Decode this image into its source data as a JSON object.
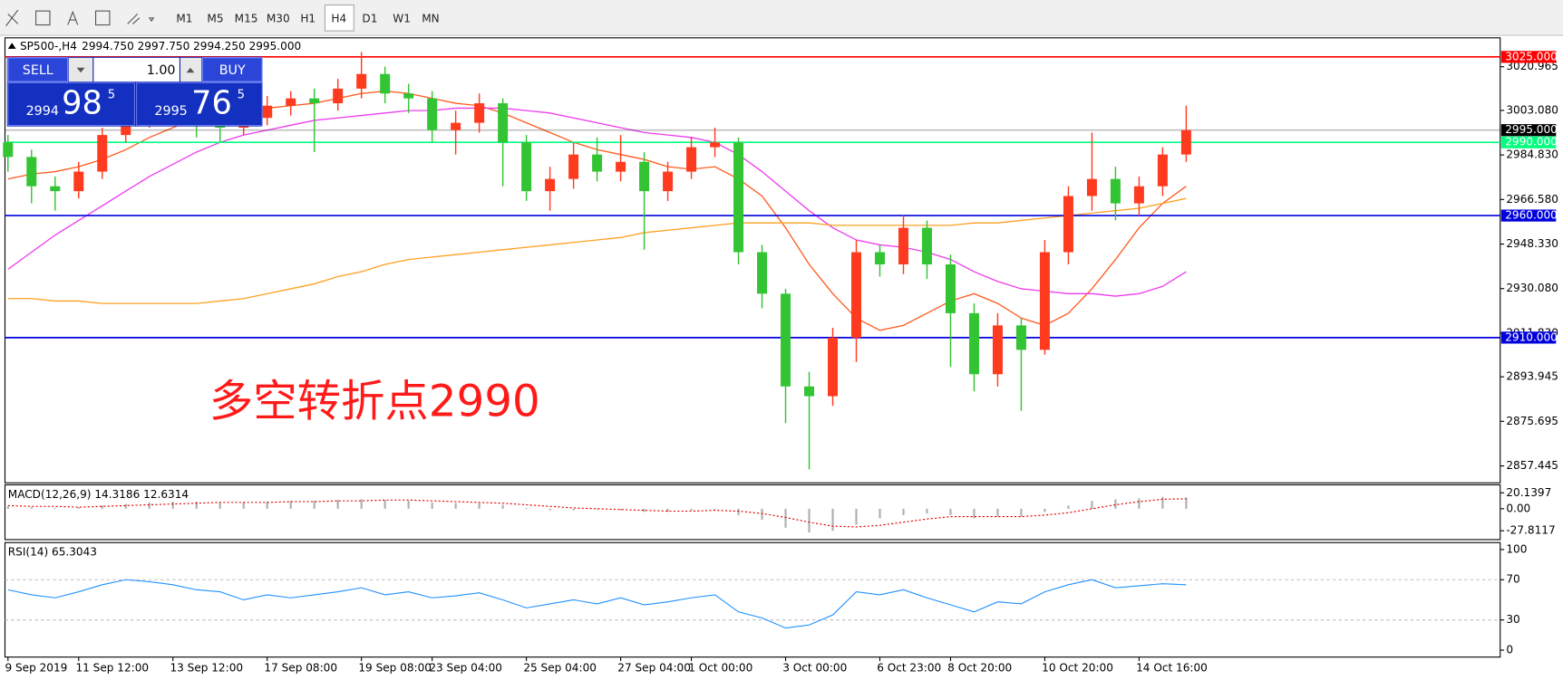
{
  "toolbar": {
    "timeframes": [
      "M1",
      "M5",
      "M15",
      "M30",
      "H1",
      "H4",
      "D1",
      "W1",
      "MN"
    ],
    "active": 5
  },
  "trade_panel": {
    "sell": "SELL",
    "buy": "BUY",
    "lot": "1.00",
    "sell_price": [
      "2994",
      "98",
      "5"
    ],
    "buy_price": [
      "2995",
      "76",
      "5"
    ]
  },
  "chart_data": {
    "type": "candlestick",
    "title": "SP500-,H4",
    "ohlc_label": "2994.750 2997.750 2994.250 2995.000",
    "categories": [
      "9 Sep 2019",
      null,
      null,
      "11 Sep 12:00",
      null,
      null,
      null,
      "13 Sep 12:00",
      null,
      null,
      null,
      "17 Sep 08:00",
      null,
      null,
      null,
      "19 Sep 08:00",
      null,
      null,
      "23 Sep 04:00",
      null,
      null,
      null,
      "25 Sep 04:00",
      null,
      null,
      null,
      "27 Sep 04:00",
      null,
      null,
      "1 Oct 00:00",
      null,
      null,
      null,
      "3 Oct 00:00",
      null,
      null,
      null,
      "6 Oct 23:00",
      null,
      null,
      "8 Oct 20:00",
      null,
      null,
      null,
      "10 Oct 20:00",
      null,
      null,
      null,
      "14 Oct 16:00",
      null,
      null
    ],
    "open": [
      2990,
      2984,
      2972,
      2970,
      2978,
      2993,
      3000,
      3003,
      3005,
      2998,
      2996,
      3000,
      3005,
      3008,
      3006,
      3012,
      3018,
      3010,
      3008,
      2995,
      2998,
      3006,
      2990,
      2970,
      2975,
      2985,
      2978,
      2982,
      2970,
      2978,
      2988,
      2990,
      2945,
      2928,
      2890,
      2886,
      2910,
      2945,
      2940,
      2955,
      2940,
      2920,
      2895,
      2915,
      2905,
      2945,
      2968,
      2975,
      2965,
      2972,
      2985
    ],
    "high": [
      2993,
      2987,
      2976,
      2982,
      2996,
      3004,
      3007,
      3009,
      3008,
      3001,
      3005,
      3009,
      3011,
      3012,
      3016,
      3027,
      3021,
      3014,
      3011,
      3003,
      3010,
      3008,
      2993,
      2980,
      2990,
      2992,
      2993,
      2986,
      2982,
      2992,
      2996,
      2992,
      2948,
      2930,
      2896,
      2914,
      2950,
      2948,
      2960,
      2958,
      2944,
      2924,
      2920,
      2918,
      2950,
      2972,
      2994,
      2980,
      2976,
      2988,
      3005
    ],
    "low": [
      2978,
      2965,
      2962,
      2967,
      2975,
      2990,
      2996,
      2999,
      2992,
      2990,
      2993,
      2997,
      3001,
      2986,
      3003,
      3008,
      3006,
      3002,
      2990,
      2985,
      2994,
      2972,
      2966,
      2962,
      2971,
      2974,
      2974,
      2946,
      2966,
      2975,
      2984,
      2940,
      2922,
      2875,
      2856,
      2882,
      2900,
      2935,
      2936,
      2934,
      2898,
      2888,
      2890,
      2880,
      2903,
      2940,
      2962,
      2958,
      2960,
      2968,
      2982
    ],
    "close": [
      2984,
      2972,
      2970,
      2978,
      2993,
      3000,
      3003,
      3005,
      2998,
      2996,
      3000,
      3005,
      3008,
      3006,
      3012,
      3018,
      3010,
      3008,
      2995,
      2998,
      3006,
      2990,
      2970,
      2975,
      2985,
      2978,
      2982,
      2970,
      2978,
      2988,
      2990,
      2945,
      2928,
      2890,
      2886,
      2910,
      2945,
      2940,
      2955,
      2940,
      2920,
      2895,
      2915,
      2905,
      2945,
      2968,
      2975,
      2965,
      2972,
      2985,
      2995
    ],
    "up_color": "#ff3b1f",
    "down_color": "#33c433",
    "ma_lines": [
      {
        "color": "#ff5a1f",
        "values": [
          2975,
          2977,
          2978,
          2980,
          2983,
          2987,
          2992,
          2996,
          3000,
          3001,
          3002,
          3004,
          3005,
          3006,
          3008,
          3010,
          3011,
          3010,
          3008,
          3006,
          3005,
          3002,
          2998,
          2994,
          2990,
          2987,
          2985,
          2983,
          2980,
          2979,
          2980,
          2975,
          2968,
          2955,
          2940,
          2928,
          2918,
          2913,
          2915,
          2920,
          2925,
          2928,
          2924,
          2918,
          2915,
          2920,
          2930,
          2942,
          2955,
          2965,
          2972
        ]
      },
      {
        "color": "#ee3bee",
        "values": [
          2938,
          2945,
          2952,
          2958,
          2964,
          2970,
          2976,
          2981,
          2986,
          2990,
          2993,
          2995,
          2997,
          2999,
          3000,
          3001,
          3002,
          3003,
          3003,
          3004,
          3004,
          3004,
          3003,
          3002,
          3000,
          2998,
          2996,
          2994,
          2993,
          2992,
          2990,
          2985,
          2978,
          2970,
          2962,
          2955,
          2950,
          2948,
          2947,
          2945,
          2942,
          2937,
          2933,
          2930,
          2929,
          2928,
          2928,
          2927,
          2928,
          2931,
          2937
        ]
      },
      {
        "color": "#ffa020",
        "values": [
          2926,
          2926,
          2925,
          2925,
          2924,
          2924,
          2924,
          2924,
          2924,
          2925,
          2926,
          2928,
          2930,
          2932,
          2935,
          2937,
          2940,
          2942,
          2943,
          2944,
          2945,
          2946,
          2947,
          2948,
          2949,
          2950,
          2951,
          2953,
          2954,
          2955,
          2956,
          2957,
          2957,
          2957,
          2957,
          2956,
          2956,
          2956,
          2956,
          2956,
          2956,
          2957,
          2957,
          2958,
          2959,
          2960,
          2961,
          2962,
          2963,
          2965,
          2967
        ]
      }
    ],
    "levels": [
      {
        "value": 3025,
        "label": "3025.000",
        "color": "#ff0000"
      },
      {
        "value": 2995,
        "label": "2995.000",
        "color": "#000000"
      },
      {
        "value": 2990,
        "label": "2990.000",
        "color": "#00ff7f"
      },
      {
        "value": 2960,
        "label": "2960.000",
        "color": "#0000dd"
      },
      {
        "value": 2910,
        "label": "2910.000",
        "color": "#0000dd"
      }
    ],
    "annotation": "多空转折点2990",
    "ylim": [
      2850.5,
      3032.8
    ],
    "yticks": [
      3020.965,
      {
        "value": 3003.08,
        "label": "3003.080"
      },
      {
        "value": 2984.83,
        "label": "2984.830"
      },
      {
        "value": 2966.58,
        "label": "2966.580"
      },
      {
        "value": 2948.33,
        "label": "2948.330"
      },
      {
        "value": 2930.08,
        "label": "2930.080"
      },
      {
        "value": 2911.83,
        "label": "2911.830"
      },
      2893.945,
      2875.695,
      2857.445
    ],
    "indicators": [
      {
        "type": "macd",
        "label": "MACD(12,26,9) 14.3186 12.6314",
        "color": "#b0b0b0",
        "signal_color": "#e00000",
        "ylim": [
          -39,
          30.2
        ],
        "yticks": [
          20.1397,
          {
            "value": 0,
            "label": "0.00"
          },
          -27.8117
        ],
        "values": [
          3,
          2,
          1,
          2,
          4,
          6,
          8,
          9,
          9,
          8,
          8,
          9,
          10,
          10,
          11,
          12,
          11,
          10,
          8,
          7,
          7,
          5,
          1,
          -2,
          -2,
          -1,
          -2,
          -4,
          -4,
          -2,
          -1,
          -8,
          -14,
          -24,
          -30,
          -28,
          -20,
          -12,
          -8,
          -6,
          -8,
          -12,
          -10,
          -10,
          -4,
          4,
          10,
          12,
          13,
          15,
          14.3
        ],
        "signal": [
          4,
          3,
          3,
          2,
          3,
          4,
          5,
          6,
          7,
          8,
          8,
          8,
          9,
          9,
          10,
          10,
          11,
          11,
          10,
          9,
          8,
          7,
          5,
          3,
          1,
          0,
          -1,
          -2,
          -3,
          -3,
          -2,
          -3,
          -6,
          -11,
          -17,
          -22,
          -23,
          -21,
          -17,
          -13,
          -10,
          -10,
          -10,
          -10,
          -8,
          -5,
          0,
          5,
          9,
          12,
          12.6
        ]
      },
      {
        "type": "line",
        "label": "RSI(14) 65.3043",
        "color": "#1e90ff",
        "ylim": [
          -6.9,
          106.9
        ],
        "yticks": [
          100,
          70,
          30,
          0
        ],
        "levels": [
          70,
          30
        ],
        "values": [
          60,
          55,
          52,
          58,
          65,
          70,
          68,
          65,
          60,
          58,
          50,
          55,
          52,
          55,
          58,
          62,
          55,
          58,
          52,
          54,
          57,
          50,
          42,
          46,
          50,
          46,
          52,
          45,
          48,
          52,
          55,
          38,
          32,
          22,
          25,
          35,
          58,
          55,
          60,
          52,
          45,
          38,
          48,
          46,
          58,
          65,
          70,
          62,
          64,
          66,
          65
        ]
      }
    ]
  }
}
